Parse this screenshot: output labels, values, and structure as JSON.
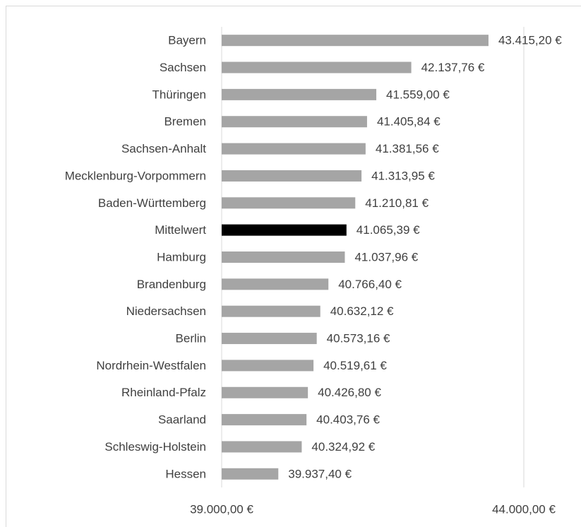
{
  "chart_data": {
    "type": "bar",
    "orientation": "horizontal",
    "categories": [
      "Bayern",
      "Sachsen",
      "Thüringen",
      "Bremen",
      "Sachsen-Anhalt",
      "Mecklenburg-Vorpommern",
      "Baden-Württemberg",
      "Mittelwert",
      "Hamburg",
      "Brandenburg",
      "Niedersachsen",
      "Berlin",
      "Nordrhein-Westfalen",
      "Rheinland-Pfalz",
      "Saarland",
      "Schleswig-Holstein",
      "Hessen"
    ],
    "values": [
      43415.2,
      42137.76,
      41559.0,
      41405.84,
      41381.56,
      41313.95,
      41210.81,
      41065.39,
      41037.96,
      40766.4,
      40632.12,
      40573.16,
      40519.61,
      40426.8,
      40403.76,
      40324.92,
      39937.4
    ],
    "value_labels": [
      "43.415,20 €",
      "42.137,76 €",
      "41.559,00 €",
      "41.405,84 €",
      "41.381,56 €",
      "41.313,95 €",
      "41.210,81 €",
      "41.065,39 €",
      "41.037,96 €",
      "40.766,40 €",
      "40.632,12 €",
      "40.573,16 €",
      "40.519,61 €",
      "40.426,80 €",
      "40.403,76 €",
      "40.324,92 €",
      "39.937,40 €"
    ],
    "colors": [
      "#a5a5a5",
      "#a5a5a5",
      "#a5a5a5",
      "#a5a5a5",
      "#a5a5a5",
      "#a5a5a5",
      "#a5a5a5",
      "#000000",
      "#a5a5a5",
      "#a5a5a5",
      "#a5a5a5",
      "#a5a5a5",
      "#a5a5a5",
      "#a5a5a5",
      "#a5a5a5",
      "#a5a5a5",
      "#a5a5a5"
    ],
    "xlim": [
      39000,
      44000
    ],
    "xticks": [
      {
        "value": 39000,
        "label": "39.000,00 €"
      },
      {
        "value": 44000,
        "label": "44.000,00 €"
      }
    ],
    "grid": true
  }
}
